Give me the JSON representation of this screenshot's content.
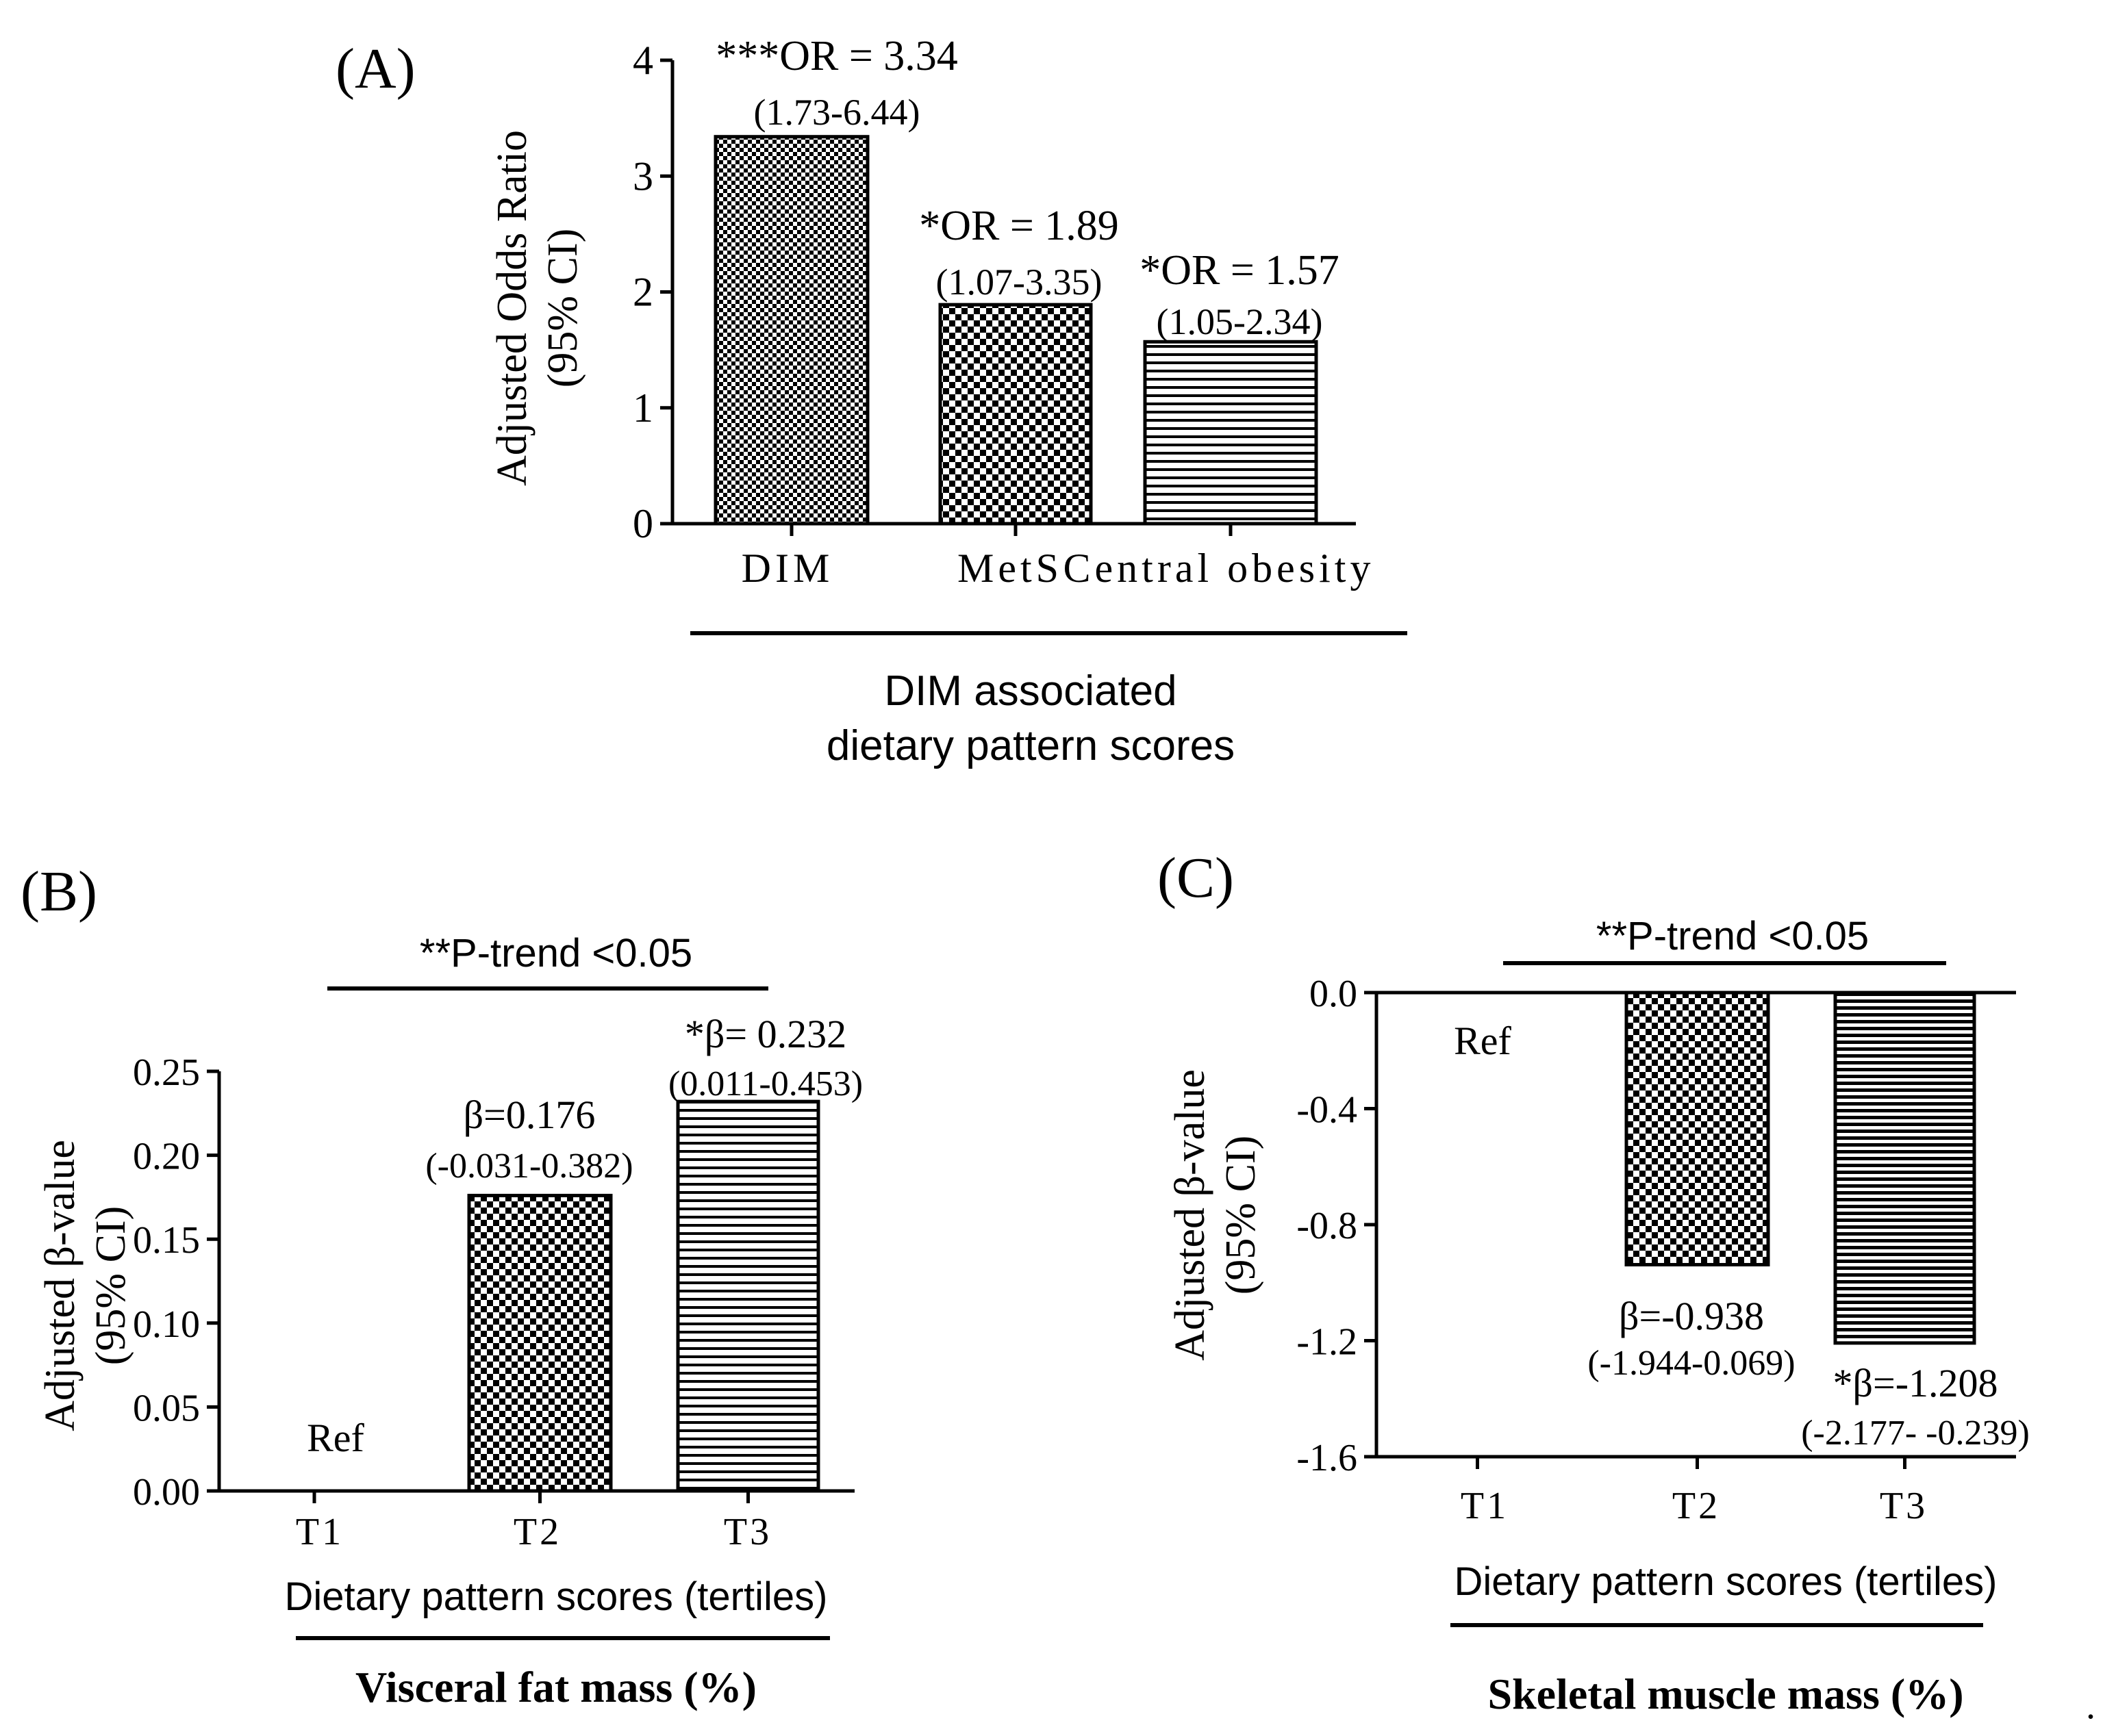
{
  "chart_data": [
    {
      "panel": "(A)",
      "type": "bar",
      "categories": [
        "DIM",
        "MetS",
        "Central obesity"
      ],
      "values": [
        3.34,
        1.89,
        1.57
      ],
      "patterns": [
        "fine-checker",
        "coarse-checker",
        "horizontal-lines"
      ],
      "annotations": [
        {
          "main": "***OR = 3.34",
          "ci": "(1.73-6.44)"
        },
        {
          "main": "*OR = 1.89",
          "ci": "(1.07-3.35)"
        },
        {
          "main": "*OR = 1.57",
          "ci": "(1.05-2.34)"
        }
      ],
      "ylabel": [
        "Adjusted Odds Ratio",
        "(95% CI)"
      ],
      "group_label": [
        "DIM associated",
        "dietary pattern scores"
      ],
      "ylim": [
        0,
        4
      ],
      "yticks": [
        "0",
        "1",
        "2",
        "3",
        "4"
      ]
    },
    {
      "panel": "(B)",
      "type": "bar",
      "categories": [
        "T1",
        "T2",
        "T3"
      ],
      "values": [
        0,
        0.176,
        0.232
      ],
      "patterns": [
        "none",
        "coarse-checker",
        "horizontal-lines"
      ],
      "annotations": [
        {
          "main": "Ref",
          "ci": ""
        },
        {
          "main": "β=0.176",
          "ci": "(-0.031-0.382)"
        },
        {
          "main": "*β= 0.232",
          "ci": "(0.011-0.453)"
        }
      ],
      "trend": "**P-trend <0.05",
      "ylabel": [
        "Adjusted β-value",
        "(95% CI)"
      ],
      "xlabel": "Dietary pattern scores (tertiles)",
      "outcome": "Visceral fat mass (%)",
      "ylim": [
        0,
        0.25
      ],
      "yticks": [
        "0.00",
        "0.05",
        "0.10",
        "0.15",
        "0.20",
        "0.25"
      ]
    },
    {
      "panel": "(C)",
      "type": "bar",
      "categories": [
        "T1",
        "T2",
        "T3"
      ],
      "values": [
        0,
        -0.938,
        -1.208
      ],
      "patterns": [
        "none",
        "coarse-checker",
        "horizontal-lines-dense"
      ],
      "annotations": [
        {
          "main": "Ref",
          "ci": ""
        },
        {
          "main": "β=-0.938",
          "ci": "(-1.944-0.069)"
        },
        {
          "main": "*β=-1.208",
          "ci": "(-2.177- -0.239)"
        }
      ],
      "trend": "**P-trend <0.05",
      "ylabel": [
        "Adjusted β-value",
        "(95% CI)"
      ],
      "xlabel": "Dietary pattern scores (tertiles)",
      "outcome": "Skeletal muscle mass (%)",
      "ylim": [
        -1.6,
        0
      ],
      "yticks": [
        "0.0",
        "-0.4",
        "-0.8",
        "-1.2",
        "-1.6"
      ]
    }
  ],
  "trailing_mark": "."
}
